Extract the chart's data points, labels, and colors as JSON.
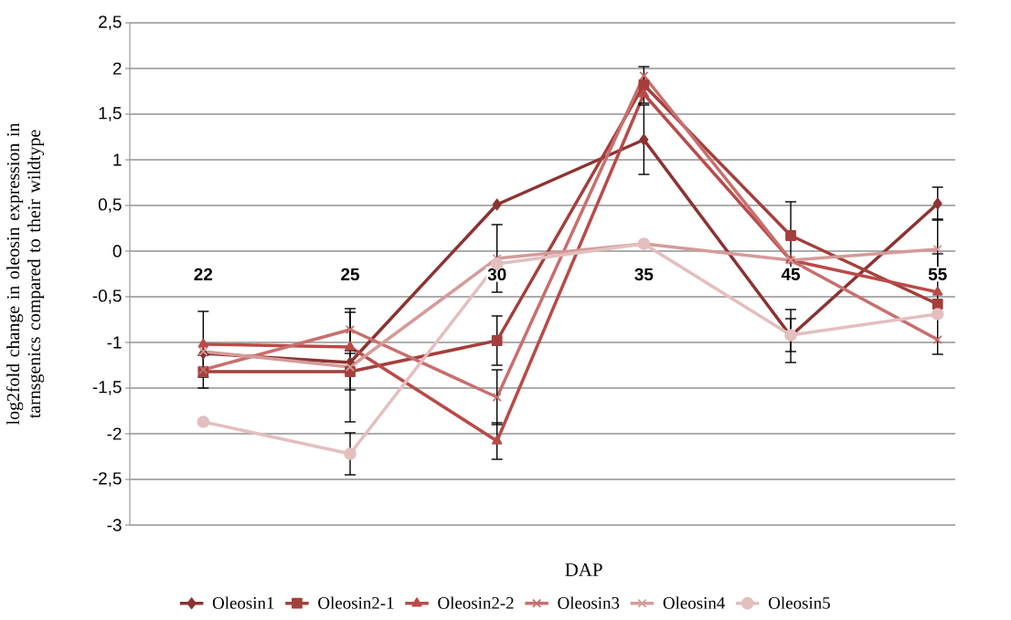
{
  "chart_data": {
    "type": "line",
    "xlabel": "DAP",
    "ylabel": "log2fold change in oleosin expression in tarnsgenics compared to their wildtype",
    "categories": [
      "22",
      "25",
      "30",
      "35",
      "45",
      "55"
    ],
    "ylim": [
      -3,
      2.5
    ],
    "yticks": [
      {
        "value": -3,
        "label": "-3"
      },
      {
        "value": -2.5,
        "label": "-2,5"
      },
      {
        "value": -2,
        "label": "-2"
      },
      {
        "value": -1.5,
        "label": "-1,5"
      },
      {
        "value": -1,
        "label": "-1"
      },
      {
        "value": -0.5,
        "label": "-0,5"
      },
      0,
      {
        "value": 0.5,
        "label": "0,5"
      },
      1,
      {
        "value": 1.5,
        "label": "1,5"
      },
      2,
      {
        "value": 2.5,
        "label": "2,5"
      }
    ],
    "grid": "y",
    "legend": "bottom",
    "series": [
      {
        "name": "Oleosin1",
        "color": "#8b3332",
        "marker": "diamond",
        "values": [
          -1.12,
          -1.22,
          0.51,
          1.22,
          -0.93,
          0.52
        ],
        "errors": [
          null,
          null,
          null,
          0.38,
          0.29,
          0.18
        ]
      },
      {
        "name": "Oleosin2-1",
        "color": "#a43f3c",
        "marker": "square",
        "values": [
          -1.32,
          -1.32,
          -0.98,
          1.82,
          0.17,
          -0.58
        ],
        "errors": [
          0.18,
          0.2,
          0.27,
          0.2,
          0.37,
          0.55
        ]
      },
      {
        "name": "Oleosin2-2",
        "color": "#ba4a48",
        "marker": "triangle",
        "values": [
          -1.02,
          -1.05,
          -2.08,
          1.72,
          -0.1,
          -0.45
        ],
        "errors": [
          0.36,
          null,
          0.2,
          null,
          null,
          null
        ]
      },
      {
        "name": "Oleosin3",
        "color": "#c86f6d",
        "marker": "cross",
        "values": [
          -1.3,
          -0.86,
          -1.6,
          1.92,
          -0.1,
          -0.97
        ],
        "errors": [
          null,
          0.23,
          0.3,
          null,
          null,
          null
        ]
      },
      {
        "name": "Oleosin4",
        "color": "#d49b9a",
        "marker": "cross",
        "values": [
          -1.1,
          -1.27,
          -0.08,
          0.08,
          -0.1,
          0.02
        ],
        "errors": [
          null,
          0.6,
          0.37,
          null,
          null,
          0.33
        ]
      },
      {
        "name": "Oleosin5",
        "color": "#e3bfbf",
        "marker": "circle",
        "values": [
          -1.87,
          -2.22,
          -0.14,
          0.08,
          -0.92,
          -0.69
        ],
        "errors": [
          null,
          0.23,
          null,
          null,
          0.18,
          null
        ]
      }
    ]
  }
}
